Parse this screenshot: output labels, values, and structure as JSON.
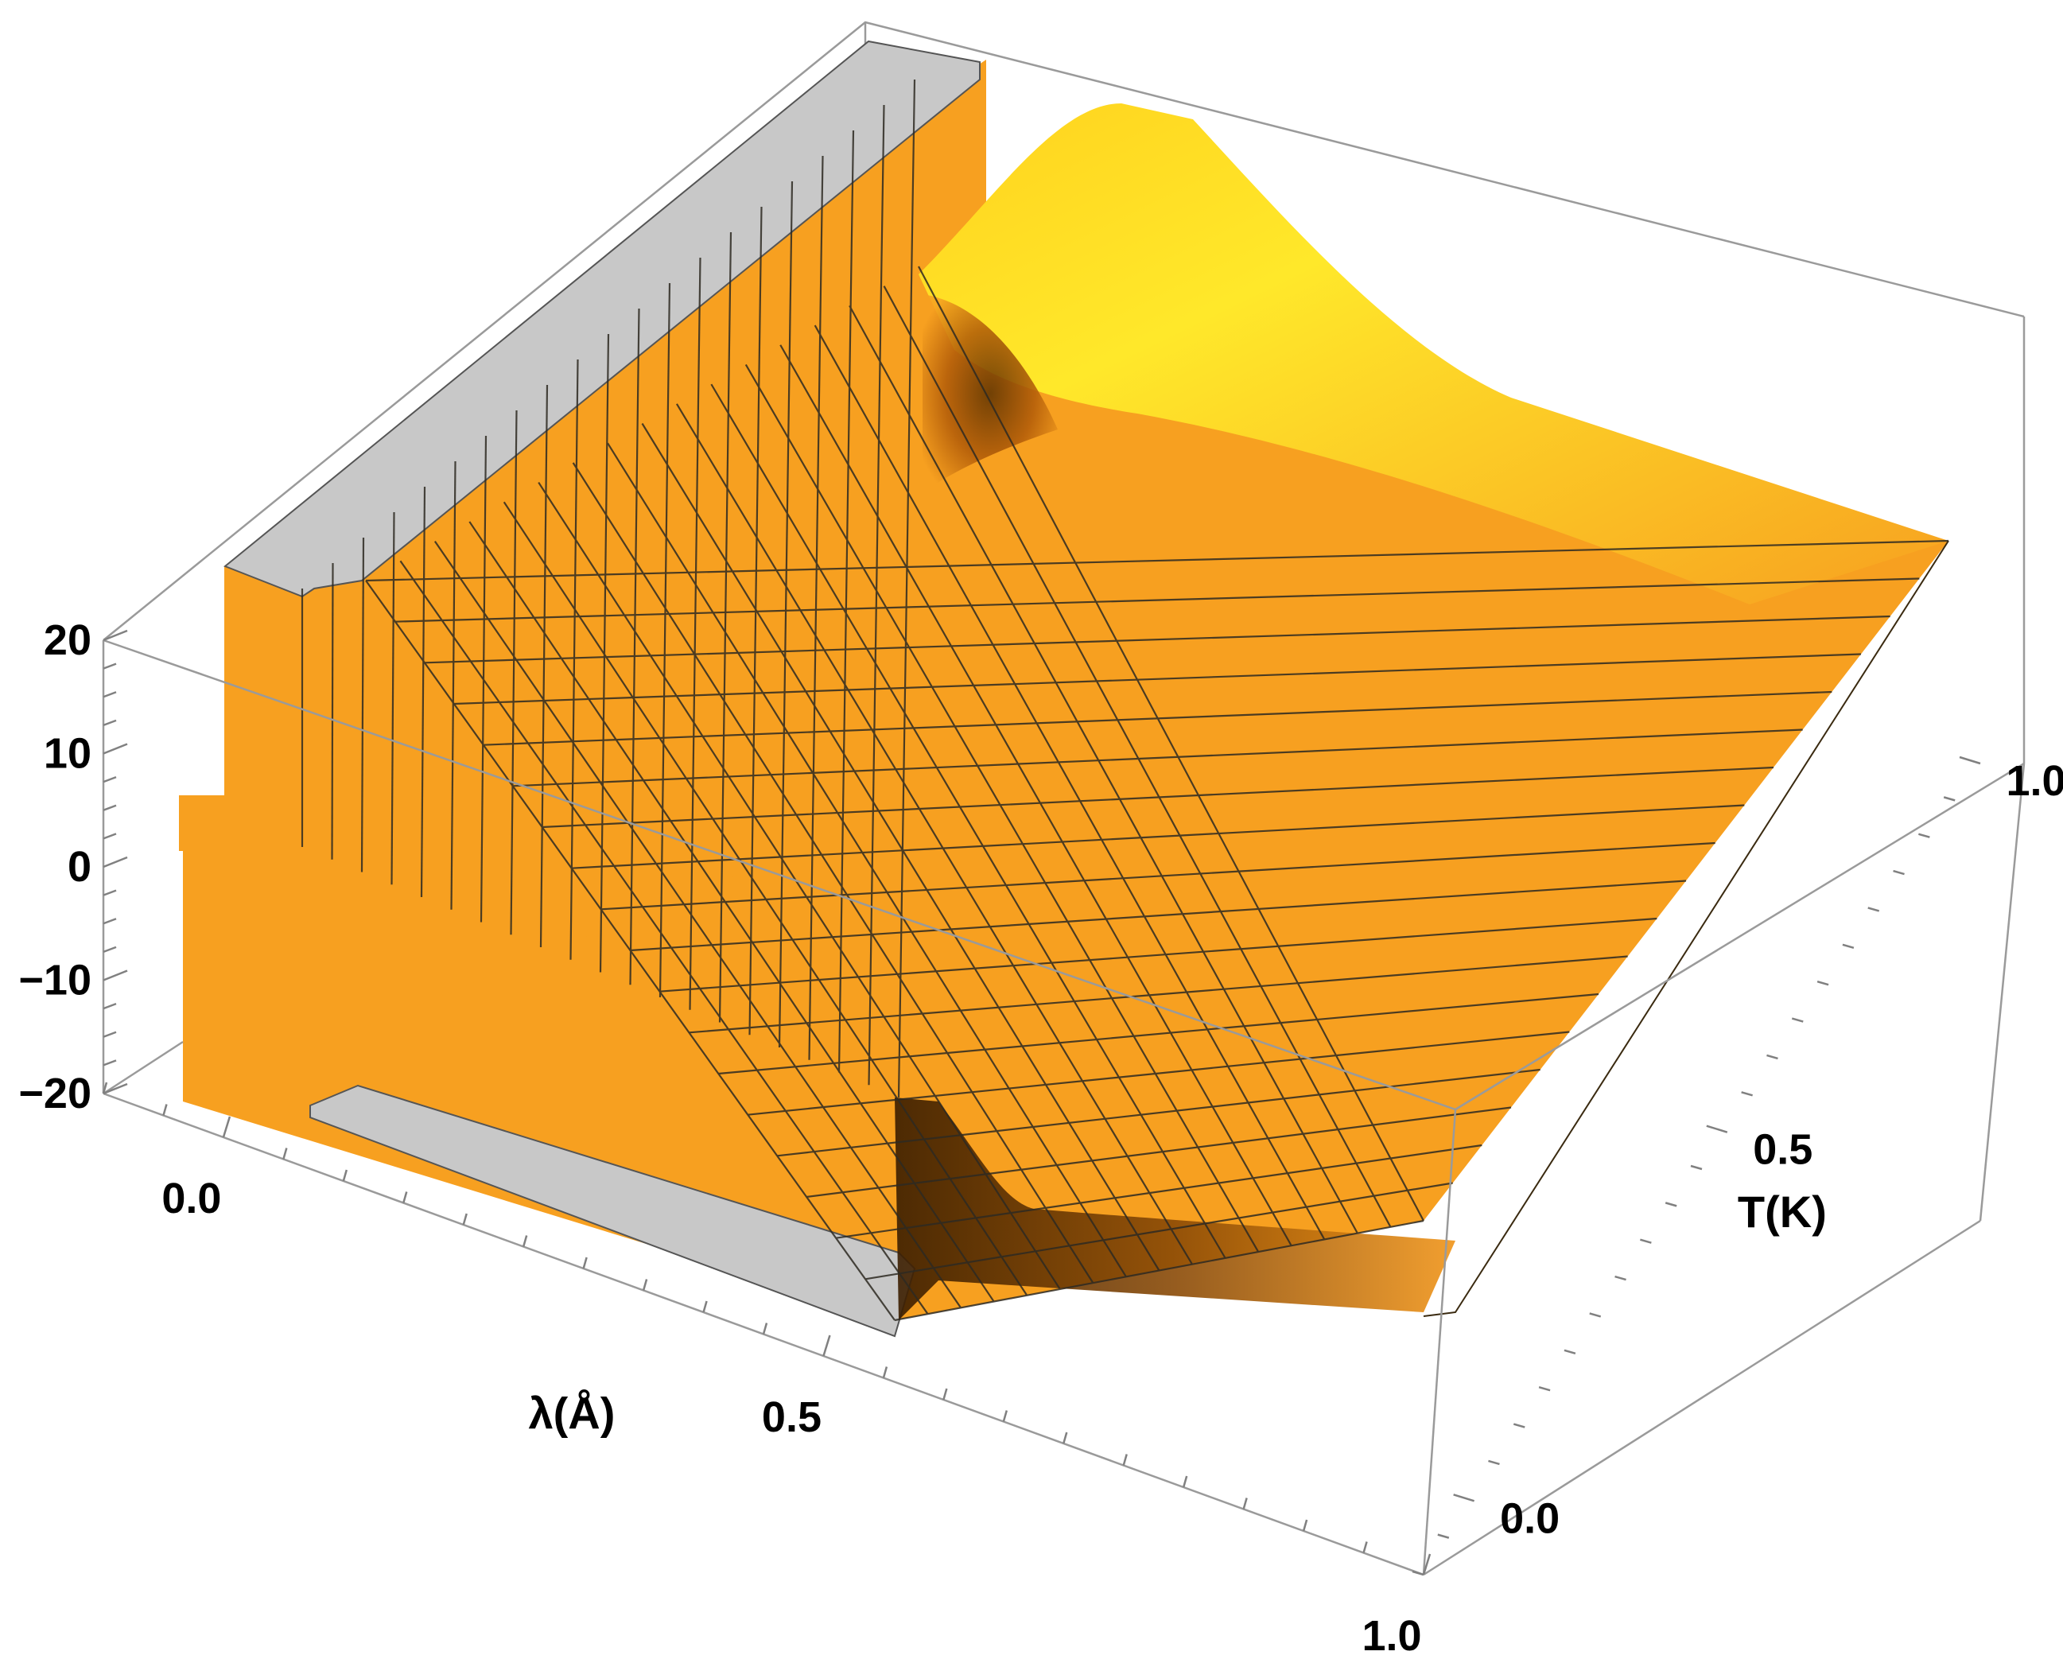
{
  "chart_data": {
    "type": "surface3d",
    "title": "",
    "x_axis": {
      "label": "λ(Å)",
      "range": [
        -0.1,
        1.0
      ],
      "ticks": [
        0.0,
        0.5,
        1.0
      ],
      "tick_labels": [
        "0.0",
        "0.5",
        "1.0"
      ]
    },
    "y_axis": {
      "label": "T(K)",
      "range": [
        -0.1,
        1.0
      ],
      "ticks": [
        0.0,
        0.5,
        1.0
      ],
      "tick_labels": [
        "0.0",
        "0.5",
        "1.0"
      ]
    },
    "z_axis": {
      "label": "",
      "range": [
        -20,
        20
      ],
      "ticks": [
        -20,
        -10,
        0,
        10,
        20
      ],
      "tick_labels": [
        "−20",
        "−10",
        "0",
        "10",
        "20"
      ]
    },
    "surface": {
      "description_of_features": [],
      "clip_color": "#c8c8c8",
      "surface_color": "#f7a020",
      "mesh": true
    },
    "grid": false,
    "colors": {
      "surface": "#f7a020",
      "surface_highlight": "#ffe227",
      "surface_shadow": "#5a3000",
      "clip": "#c8c8c8",
      "box": "#9a9a9a"
    }
  }
}
